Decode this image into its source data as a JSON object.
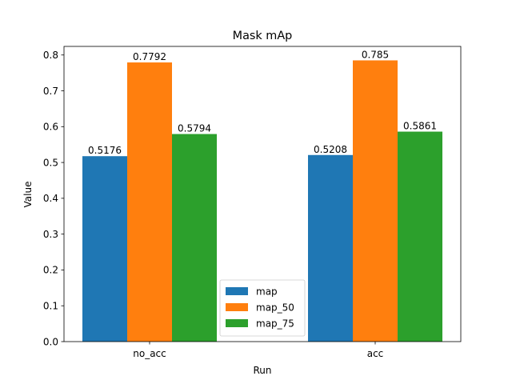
{
  "chart_data": {
    "type": "bar",
    "title": "Mask mAp",
    "xlabel": "Run",
    "ylabel": "Value",
    "categories": [
      "no_acc",
      "acc"
    ],
    "series": [
      {
        "name": "map",
        "color": "#1f77b4",
        "values": [
          0.5176,
          0.5208
        ],
        "labels": [
          "0.5176",
          "0.5208"
        ]
      },
      {
        "name": "map_50",
        "color": "#ff7f0e",
        "values": [
          0.7792,
          0.785
        ],
        "labels": [
          "0.7792",
          "0.785"
        ]
      },
      {
        "name": "map_75",
        "color": "#2ca02c",
        "values": [
          0.5794,
          0.5861
        ],
        "labels": [
          "0.5794",
          "0.5861"
        ]
      }
    ],
    "ylim": [
      0,
      0.824
    ],
    "yticks": [
      0.0,
      0.1,
      0.2,
      0.3,
      0.4,
      0.5,
      0.6,
      0.7,
      0.8
    ],
    "ytick_labels": [
      "0.0",
      "0.1",
      "0.2",
      "0.3",
      "0.4",
      "0.5",
      "0.6",
      "0.7",
      "0.8"
    ],
    "grid": false,
    "legend_position": "bottom-center"
  }
}
